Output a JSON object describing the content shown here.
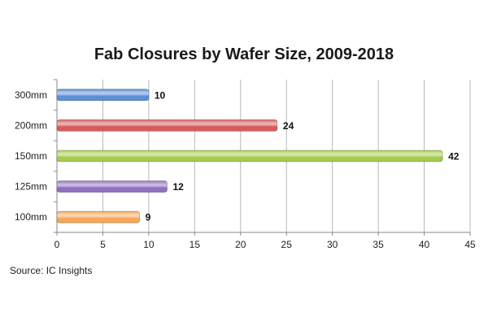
{
  "chart_data": {
    "type": "bar",
    "orientation": "horizontal",
    "title": "Fab Closures by Wafer Size, 2009-2018",
    "xlabel": "",
    "ylabel": "",
    "categories": [
      "300mm",
      "200mm",
      "150mm",
      "125mm",
      "100mm"
    ],
    "values": [
      10,
      24,
      42,
      12,
      9
    ],
    "bar_colors": [
      "#5b8fd6",
      "#d65c5c",
      "#a3cc4c",
      "#9070c0",
      "#f5a85a"
    ],
    "xlim": [
      0,
      45
    ],
    "xticks": [
      0,
      5,
      10,
      15,
      20,
      25,
      30,
      35,
      40,
      45
    ],
    "grid": "vertical",
    "legend": "none",
    "data_labels": true
  },
  "source": "Source:  IC Insights"
}
